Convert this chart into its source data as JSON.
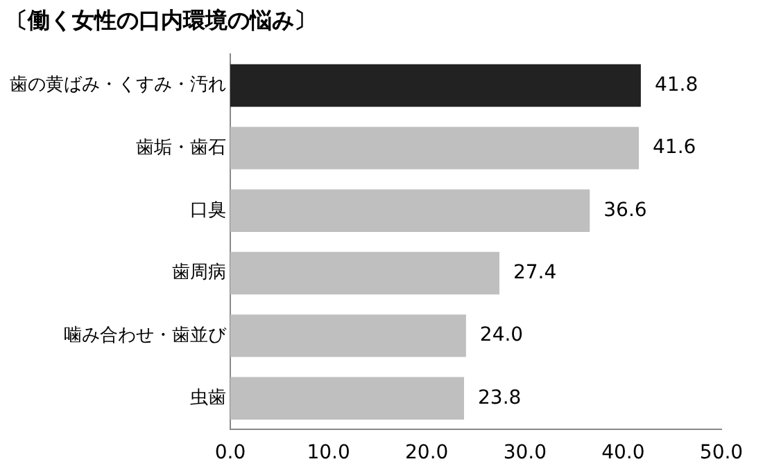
{
  "chart_data": {
    "type": "bar",
    "orientation": "horizontal",
    "title": "〔働く女性の口内環境の悩み〕",
    "categories": [
      "歯の黄ばみ・くすみ・汚れ",
      "歯垢・歯石",
      "口臭",
      "歯周病",
      "噛み合わせ・歯並び",
      "虫歯"
    ],
    "values": [
      41.8,
      41.6,
      36.6,
      27.4,
      24.0,
      23.8
    ],
    "colors": [
      "#222222",
      "#bfbfbf",
      "#bfbfbf",
      "#bfbfbf",
      "#bfbfbf",
      "#bfbfbf"
    ],
    "value_labels": [
      "41.8",
      "41.6",
      "36.6",
      "27.4",
      "24.0",
      "23.8"
    ],
    "xlim": [
      0,
      50
    ],
    "xticks": [
      {
        "value": 0,
        "label": "0.0"
      },
      {
        "value": 10,
        "label": "10.0"
      },
      {
        "value": 20,
        "label": "20.0"
      },
      {
        "value": 30,
        "label": "30.0"
      },
      {
        "value": 40,
        "label": "40.0"
      },
      {
        "value": 50,
        "label": "50.0"
      }
    ],
    "grid": false,
    "legend": false
  }
}
